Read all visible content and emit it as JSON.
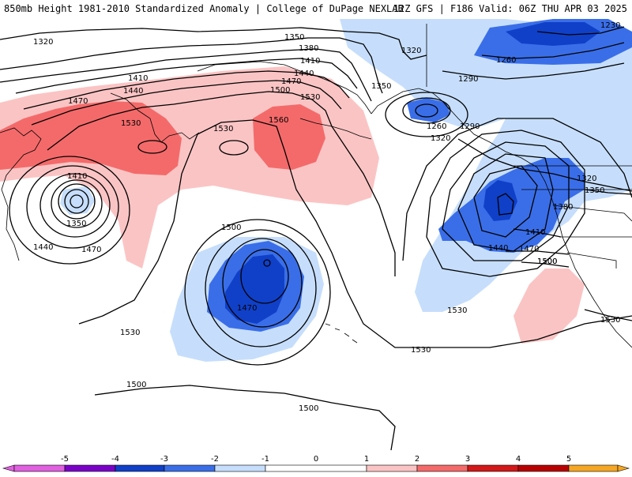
{
  "header": {
    "title_left": "850mb Height 1981-2010 Standardized Anomaly | College of DuPage NEXLAB",
    "title_right": "12Z GFS | F186 Valid: 06Z THU APR 03 2025"
  },
  "colors": {
    "neg5": "#e060e0",
    "neg4": "#7a00c8",
    "neg3": "#1040c8",
    "neg2": "#3a6ee8",
    "neg1": "#c6defc",
    "zero": "#ffffff",
    "pos1": "#fbc4c4",
    "pos2": "#f46a6a",
    "pos3": "#d21818",
    "pos4": "#b80000",
    "pos5": "#f5a623"
  },
  "legend": {
    "ticks": [
      "-5",
      "-4",
      "-3",
      "-2",
      "-1",
      "0",
      "1",
      "2",
      "3",
      "4",
      "5"
    ]
  },
  "contour_labels": [
    "1320",
    "1350",
    "1380",
    "1410",
    "1440",
    "1470",
    "1500",
    "1410",
    "1440",
    "1470",
    "1530",
    "1530",
    "1560",
    "1530",
    "1350",
    "1320",
    "1260",
    "1290",
    "1320",
    "1290",
    "1260",
    "1230",
    "1410",
    "1350",
    "1440",
    "1470",
    "1500",
    "1530",
    "1500",
    "1470",
    "1530",
    "1530",
    "1500",
    "1500",
    "1320",
    "1350",
    "1380",
    "1410",
    "1440",
    "1470",
    "1500",
    "1530"
  ]
}
